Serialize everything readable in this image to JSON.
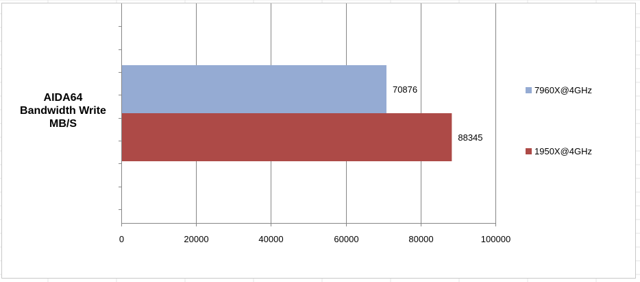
{
  "chart_data": {
    "type": "bar",
    "orientation": "horizontal",
    "categories": [
      "AIDA64\nBandwidth Write\nMB/S"
    ],
    "series": [
      {
        "name": "7960X@4GHz",
        "values": [
          70876
        ],
        "color": "#95abd3"
      },
      {
        "name": "1950X@4GHz",
        "values": [
          88345
        ],
        "color": "#ad4a47"
      }
    ],
    "xlim": [
      0,
      100000
    ],
    "xticks": [
      0,
      20000,
      40000,
      60000,
      80000,
      100000
    ],
    "grid": true,
    "legend_position": "right",
    "data_labels": true
  }
}
